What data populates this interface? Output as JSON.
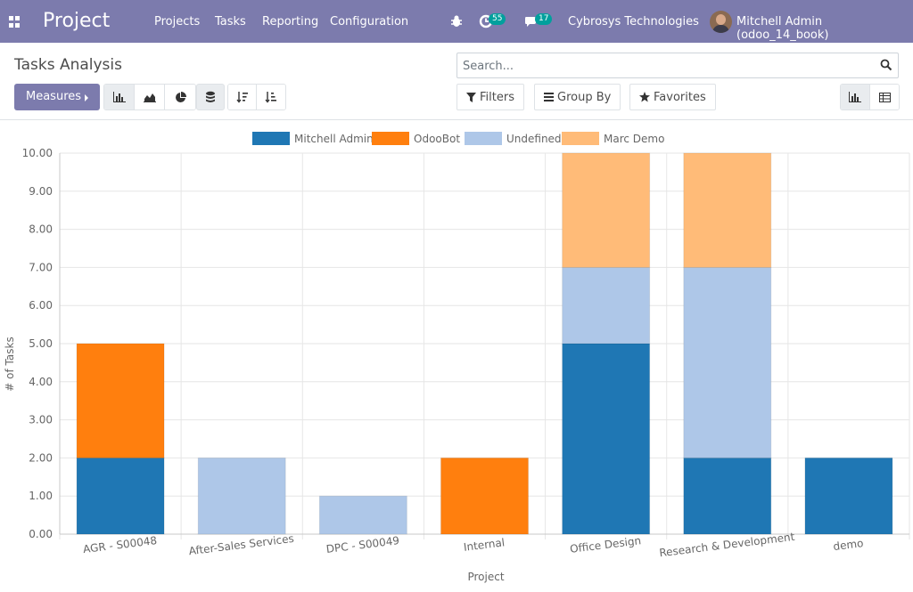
{
  "navbar": {
    "brand": "Project",
    "menu": [
      "Projects",
      "Tasks",
      "Reporting",
      "Configuration"
    ],
    "activity_count": "55",
    "message_count": "17",
    "company": "Cybrosys Technologies",
    "user": "Mitchell Admin (odoo_14_book)"
  },
  "control": {
    "title": "Tasks Analysis",
    "search_placeholder": "Search...",
    "measures_label": "Measures",
    "filters_label": "Filters",
    "groupby_label": "Group By",
    "favorites_label": "Favorites"
  },
  "icons": [
    "apps-icon",
    "bug-icon",
    "activity-icon",
    "chat-icon",
    "search-icon",
    "bar-chart-icon",
    "area-chart-icon",
    "pie-chart-icon",
    "stack-icon",
    "sort-desc-icon",
    "sort-asc-icon",
    "filter-icon",
    "bars-icon",
    "star-icon",
    "graph-view-icon",
    "pivot-view-icon"
  ],
  "chart_data": {
    "type": "bar",
    "stacked": true,
    "categories": [
      "AGR - S00048",
      "After-Sales Services",
      "DPC - S00049",
      "Internal",
      "Office Design",
      "Research & Development",
      "demo"
    ],
    "series": [
      {
        "name": "Mitchell Admin",
        "color": "#1f77b4",
        "values": [
          2,
          0,
          0,
          0,
          5,
          2,
          2
        ]
      },
      {
        "name": "OdooBot",
        "color": "#ff7f0e",
        "values": [
          3,
          0,
          0,
          2,
          0,
          0,
          0
        ]
      },
      {
        "name": "Undefined",
        "color": "#aec7e8",
        "values": [
          0,
          2,
          1,
          0,
          2,
          5,
          0
        ]
      },
      {
        "name": "Marc Demo",
        "color": "#ffbb78",
        "values": [
          0,
          0,
          0,
          0,
          3,
          3,
          0
        ]
      }
    ],
    "xlabel": "Project",
    "ylabel": "# of Tasks",
    "ylim": [
      0,
      10
    ],
    "yticks": [
      "0.00",
      "1.00",
      "2.00",
      "3.00",
      "4.00",
      "5.00",
      "6.00",
      "7.00",
      "8.00",
      "9.00",
      "10.00"
    ],
    "grid": true,
    "legend": "top"
  }
}
